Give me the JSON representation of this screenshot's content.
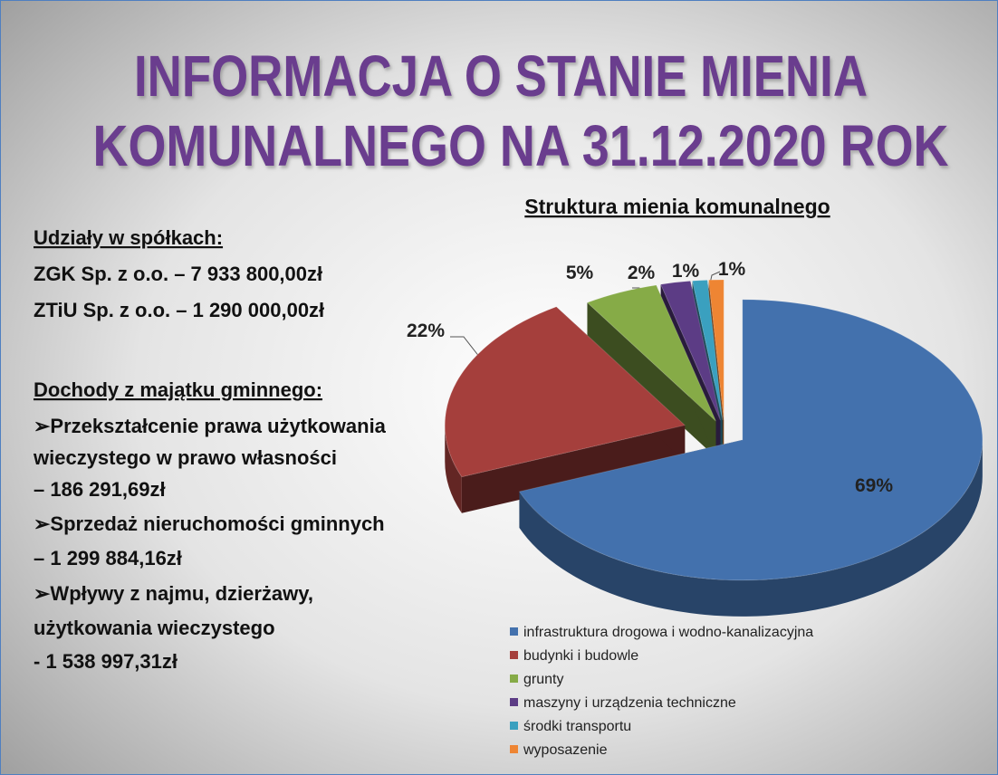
{
  "header": {
    "title_lines": [
      "INFORMACJA O STANIE MIENIA",
      "KOMUNALNEGO NA 31.12.2020 ROK"
    ]
  },
  "left": {
    "shares_heading": "Udziały w spółkach:",
    "shares": [
      "ZGK Sp. z o.o. –  7 933 800,00zł",
      "ZTiU Sp. z o.o. – 1 290 000,00zł"
    ],
    "income_heading": "Dochody z majątku gminnego:",
    "income_items": [
      {
        "lines": [
          "➢Przekształcenie prawa użytkowania",
          "wieczystego w prawo własności",
          "– 186 291,69zł"
        ]
      },
      {
        "lines": [
          "➢Sprzedaż nieruchomości gminnych",
          "– 1 299 884,16zł"
        ]
      },
      {
        "lines": [
          "➢Wpływy z najmu, dzierżawy,",
          "użytkowania wieczystego",
          "- 1 538 997,31zł"
        ]
      }
    ]
  },
  "chart_data": {
    "type": "pie",
    "title": "Struktura mienia komunalnego",
    "categories": [
      "infrastruktura drogowa i wodno-kanalizacyjna",
      "budynki i budowle",
      "grunty",
      "maszyny i urządzenia techniczne",
      "środki transportu",
      "wyposazenie"
    ],
    "values": [
      69,
      22,
      5,
      2,
      1,
      1
    ],
    "value_labels": [
      "69%",
      "22%",
      "5%",
      "2%",
      "1%",
      "1%"
    ],
    "colors": [
      "#4371ad",
      "#a53f3c",
      "#86ab47",
      "#5c3c85",
      "#3aa0bf",
      "#ee8533"
    ],
    "legend": "bottom"
  }
}
